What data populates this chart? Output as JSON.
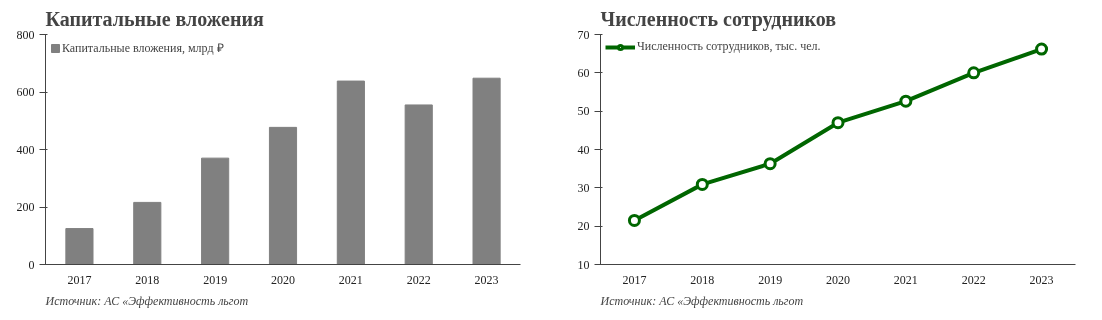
{
  "chart_data": [
    {
      "type": "bar",
      "title": "Капитальные вложения",
      "categories": [
        "2017",
        "2018",
        "2019",
        "2020",
        "2021",
        "2022",
        "2023"
      ],
      "series": [
        {
          "name": "Капитальные вложения, млрд ₽",
          "color": "#808080",
          "values": [
            125,
            216,
            370,
            477,
            638,
            555,
            648
          ]
        }
      ],
      "ylim": [
        0,
        800
      ],
      "yticks": [
        0,
        200,
        400,
        600,
        800
      ],
      "grid": false,
      "legend": "top left",
      "annotations": [
        "Источник: АС «Эффективность льгот"
      ]
    },
    {
      "type": "line",
      "title": "Численность сотрудников",
      "categories": [
        "2017",
        "2018",
        "2019",
        "2020",
        "2021",
        "2022",
        "2023"
      ],
      "series": [
        {
          "name": "Численность сотрудников, тыс. чел.",
          "color": "#006600",
          "values": [
            21.5,
            30.9,
            36.3,
            47.0,
            52.6,
            60.0,
            66.2
          ]
        }
      ],
      "ylim": [
        10,
        70
      ],
      "yticks": [
        10,
        20,
        30,
        40,
        50,
        60,
        70
      ],
      "grid": false,
      "legend": "top left",
      "marker": "circle",
      "line_style": "solid",
      "annotations": [
        "Источник: АС «Эффективность льгот"
      ]
    }
  ]
}
